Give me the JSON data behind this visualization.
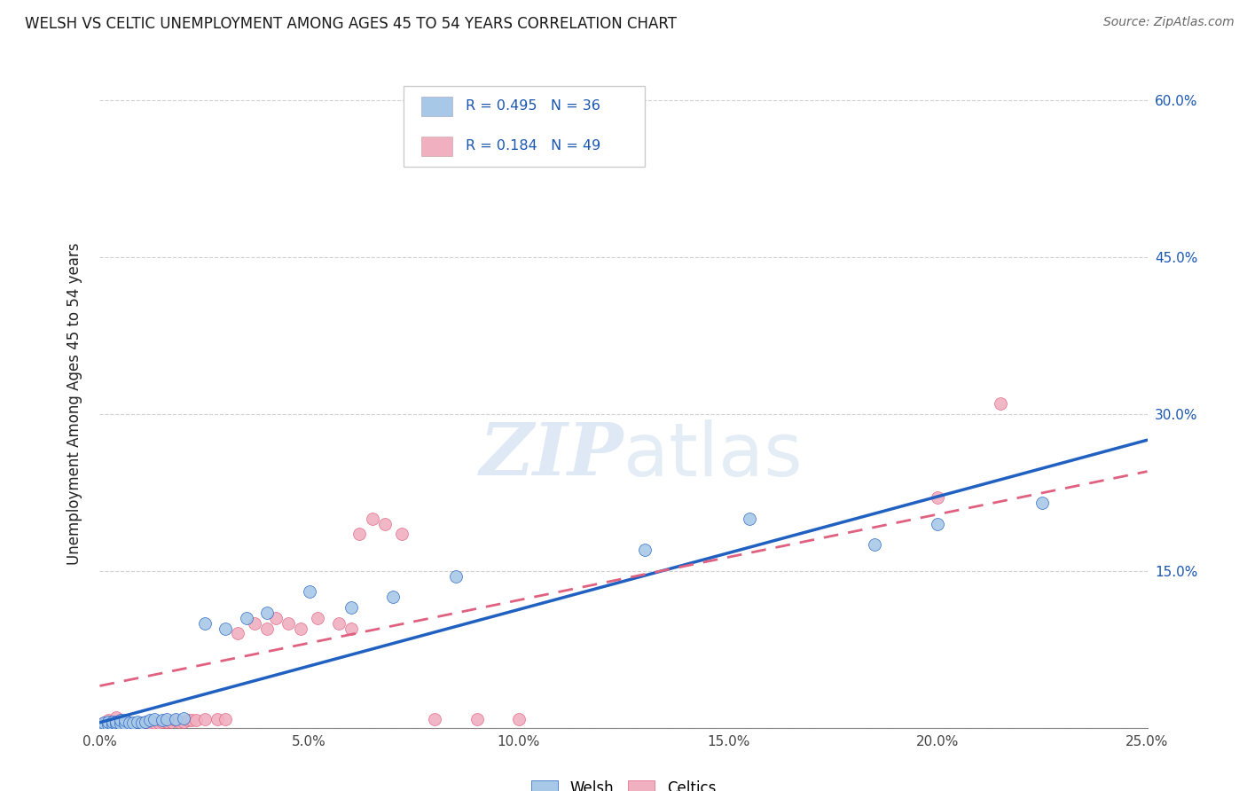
{
  "title": "WELSH VS CELTIC UNEMPLOYMENT AMONG AGES 45 TO 54 YEARS CORRELATION CHART",
  "source": "Source: ZipAtlas.com",
  "ylabel": "Unemployment Among Ages 45 to 54 years",
  "xlim": [
    0.0,
    0.25
  ],
  "ylim": [
    0.0,
    0.62
  ],
  "xticks": [
    0.0,
    0.05,
    0.1,
    0.15,
    0.2,
    0.25
  ],
  "yticks": [
    0.0,
    0.15,
    0.3,
    0.45,
    0.6
  ],
  "xtick_labels": [
    "0.0%",
    "5.0%",
    "10.0%",
    "15.0%",
    "20.0%",
    "25.0%"
  ],
  "right_ytick_labels": [
    "",
    "15.0%",
    "30.0%",
    "45.0%",
    "60.0%"
  ],
  "welsh_color": "#a8c8e8",
  "celtics_color": "#f0b0c0",
  "welsh_line_color": "#2060c0",
  "celtics_line_color": "#e06080",
  "welsh_R": 0.495,
  "welsh_N": 36,
  "celtics_R": 0.184,
  "celtics_N": 49,
  "watermark": "ZIPatlas",
  "welsh_x": [
    0.001,
    0.001,
    0.002,
    0.002,
    0.003,
    0.003,
    0.004,
    0.004,
    0.005,
    0.005,
    0.006,
    0.006,
    0.007,
    0.008,
    0.009,
    0.01,
    0.011,
    0.012,
    0.013,
    0.015,
    0.016,
    0.018,
    0.02,
    0.025,
    0.03,
    0.035,
    0.04,
    0.05,
    0.06,
    0.07,
    0.085,
    0.13,
    0.155,
    0.185,
    0.2,
    0.225
  ],
  "welsh_y": [
    0.003,
    0.005,
    0.003,
    0.006,
    0.003,
    0.006,
    0.004,
    0.006,
    0.004,
    0.007,
    0.004,
    0.007,
    0.005,
    0.005,
    0.006,
    0.005,
    0.006,
    0.007,
    0.008,
    0.007,
    0.008,
    0.008,
    0.009,
    0.1,
    0.095,
    0.105,
    0.11,
    0.13,
    0.115,
    0.125,
    0.145,
    0.17,
    0.2,
    0.175,
    0.195,
    0.215
  ],
  "celtics_x": [
    0.001,
    0.001,
    0.002,
    0.002,
    0.003,
    0.003,
    0.004,
    0.004,
    0.005,
    0.005,
    0.006,
    0.007,
    0.008,
    0.009,
    0.01,
    0.011,
    0.012,
    0.013,
    0.014,
    0.015,
    0.016,
    0.017,
    0.018,
    0.019,
    0.02,
    0.021,
    0.022,
    0.023,
    0.025,
    0.028,
    0.03,
    0.033,
    0.037,
    0.04,
    0.042,
    0.045,
    0.048,
    0.052,
    0.057,
    0.06,
    0.062,
    0.065,
    0.068,
    0.072,
    0.08,
    0.09,
    0.1,
    0.2,
    0.215
  ],
  "celtics_y": [
    0.003,
    0.005,
    0.003,
    0.007,
    0.003,
    0.006,
    0.003,
    0.01,
    0.003,
    0.007,
    0.003,
    0.004,
    0.004,
    0.004,
    0.004,
    0.005,
    0.005,
    0.005,
    0.005,
    0.006,
    0.006,
    0.006,
    0.007,
    0.006,
    0.006,
    0.007,
    0.007,
    0.007,
    0.008,
    0.008,
    0.008,
    0.09,
    0.1,
    0.095,
    0.105,
    0.1,
    0.095,
    0.105,
    0.1,
    0.095,
    0.185,
    0.2,
    0.195,
    0.185,
    0.008,
    0.008,
    0.008,
    0.22,
    0.31
  ],
  "welsh_line_x": [
    0.0,
    0.25
  ],
  "welsh_line_y": [
    0.005,
    0.275
  ],
  "celtics_line_x": [
    0.0,
    0.25
  ],
  "celtics_line_y": [
    0.04,
    0.245
  ],
  "background_color": "#ffffff",
  "grid_color": "#d0d0d0",
  "title_color": "#1a1a1a",
  "accent_color": "#1a56b0"
}
